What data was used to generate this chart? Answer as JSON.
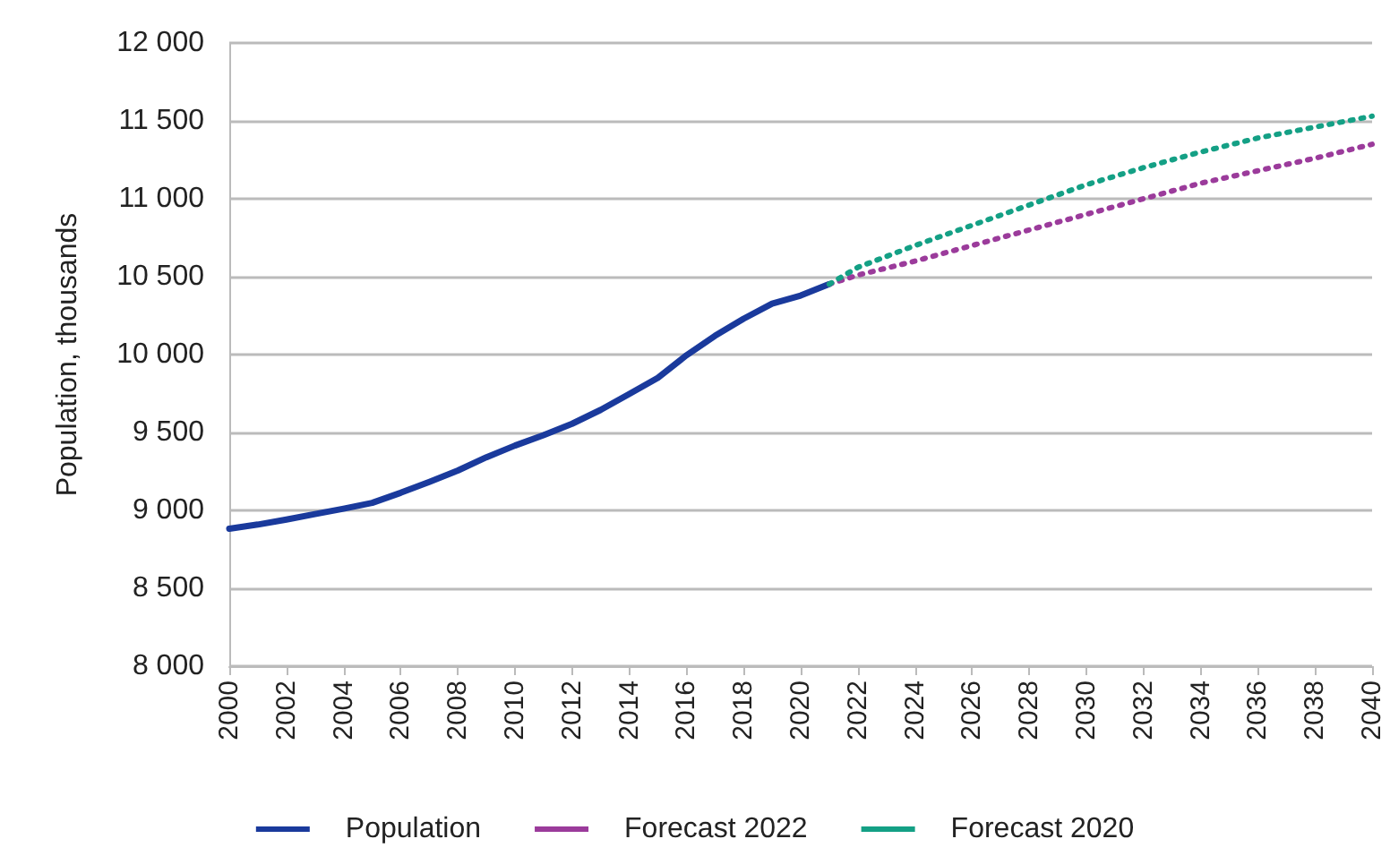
{
  "chart_data": {
    "type": "line",
    "ylabel": "Population, thousands",
    "xlim": [
      2000,
      2040
    ],
    "xticks": [
      2000,
      2002,
      2004,
      2006,
      2008,
      2010,
      2012,
      2014,
      2016,
      2018,
      2020,
      2022,
      2024,
      2026,
      2028,
      2030,
      2032,
      2034,
      2036,
      2038,
      2040
    ],
    "ylim": [
      8000,
      12000
    ],
    "yticks": [
      {
        "value": 8000,
        "label": "8 000"
      },
      {
        "value": 8500,
        "label": "8 500"
      },
      {
        "value": 9000,
        "label": "9 000"
      },
      {
        "value": 9500,
        "label": "9 500"
      },
      {
        "value": 10000,
        "label": "10 000"
      },
      {
        "value": 10500,
        "label": "10 500"
      },
      {
        "value": 11000,
        "label": "11 000"
      },
      {
        "value": 11500,
        "label": "11 500"
      },
      {
        "value": 12000,
        "label": "12 000"
      }
    ],
    "grid": "y",
    "legend": "bottom",
    "marker": "none",
    "series": [
      {
        "name": "Population",
        "color": "#1a3a9c",
        "line_style": "solid",
        "x": [
          2000,
          2001,
          2002,
          2003,
          2004,
          2005,
          2006,
          2007,
          2008,
          2009,
          2010,
          2011,
          2012,
          2013,
          2014,
          2015,
          2016,
          2017,
          2018,
          2019,
          2020,
          2021
        ],
        "values": [
          8882,
          8909,
          8941,
          8976,
          9011,
          9048,
          9113,
          9183,
          9256,
          9341,
          9416,
          9483,
          9556,
          9645,
          9747,
          9851,
          9995,
          10120,
          10230,
          10327,
          10379,
          10452
        ]
      },
      {
        "name": "Forecast 2022",
        "color": "#9b3b9b",
        "line_style": "dotted",
        "x": [
          2021,
          2022,
          2024,
          2026,
          2028,
          2030,
          2032,
          2034,
          2036,
          2038,
          2040
        ],
        "values": [
          10452,
          10510,
          10600,
          10700,
          10800,
          10900,
          11000,
          11100,
          11180,
          11260,
          11350
        ]
      },
      {
        "name": "Forecast 2020",
        "color": "#14a085",
        "line_style": "dotted",
        "x": [
          2021,
          2022,
          2024,
          2026,
          2028,
          2030,
          2032,
          2034,
          2036,
          2038,
          2040
        ],
        "values": [
          10452,
          10560,
          10700,
          10830,
          10960,
          11090,
          11200,
          11300,
          11390,
          11460,
          11530
        ]
      }
    ]
  }
}
